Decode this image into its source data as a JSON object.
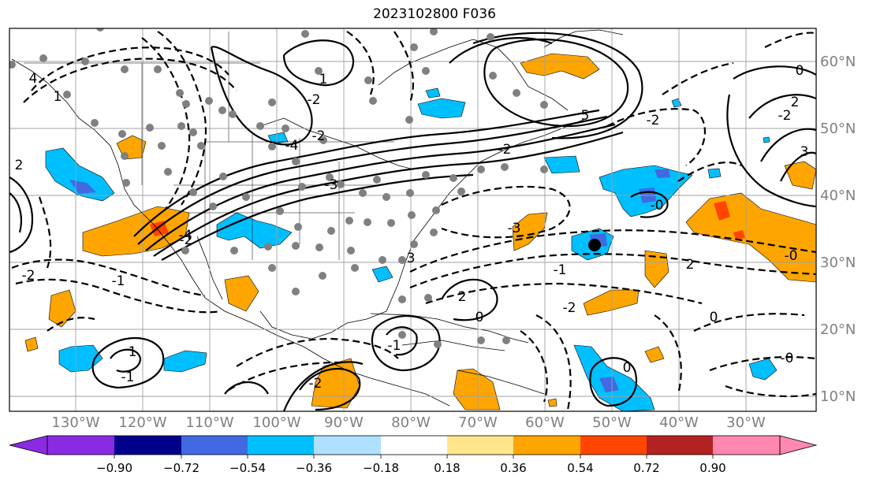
{
  "title": "2023102800 F036",
  "map": {
    "lat_labels": [
      "60°N",
      "50°N",
      "40°N",
      "30°N",
      "20°N",
      "10°N"
    ],
    "lon_labels": [
      "130°W",
      "120°W",
      "110°W",
      "100°W",
      "90°W",
      "80°W",
      "70°W",
      "60°W",
      "50°W",
      "40°W",
      "30°W"
    ],
    "contour_labels": [
      {
        "text": "4"
      },
      {
        "text": "2"
      },
      {
        "text": "1"
      },
      {
        "text": "-2"
      },
      {
        "text": "-1"
      },
      {
        "text": "-2"
      },
      {
        "text": "-4"
      },
      {
        "text": "-2"
      },
      {
        "text": "1"
      },
      {
        "text": "-2"
      },
      {
        "text": "-3"
      },
      {
        "text": "-3"
      },
      {
        "text": "3"
      },
      {
        "text": "-1"
      },
      {
        "text": "-2"
      },
      {
        "text": "0"
      },
      {
        "text": "2"
      },
      {
        "text": "-0"
      },
      {
        "text": "0"
      },
      {
        "text": "-2"
      },
      {
        "text": "2"
      },
      {
        "text": "3"
      },
      {
        "text": "-0"
      },
      {
        "text": "-2"
      },
      {
        "text": "1"
      },
      {
        "text": "-1"
      },
      {
        "text": "-2"
      },
      {
        "text": "-1"
      },
      {
        "text": "-4"
      },
      {
        "text": "2"
      },
      {
        "text": "0"
      },
      {
        "text": "-0"
      },
      {
        "text": "0"
      },
      {
        "text": "5"
      },
      {
        "text": "-2"
      }
    ],
    "colors": {
      "positive_fill": "#ffa500",
      "strong_positive": "#ff4500",
      "negative_fill": "#00bfff",
      "strong_negative": "#4169e1",
      "station": "#808080",
      "marker": "#000000",
      "grid": "#a0a0a0"
    }
  },
  "colorbar": {
    "ticks": [
      "−0.90",
      "−0.72",
      "−0.54",
      "−0.36",
      "−0.18",
      "0.18",
      "0.36",
      "0.54",
      "0.72",
      "0.90"
    ],
    "colors": [
      "#8a2be2",
      "#00008b",
      "#4169e1",
      "#00bfff",
      "#b0e0ff",
      "#ffffff",
      "#ffe68c",
      "#ffa500",
      "#ff4500",
      "#b22222",
      "#ff88b0"
    ]
  }
}
